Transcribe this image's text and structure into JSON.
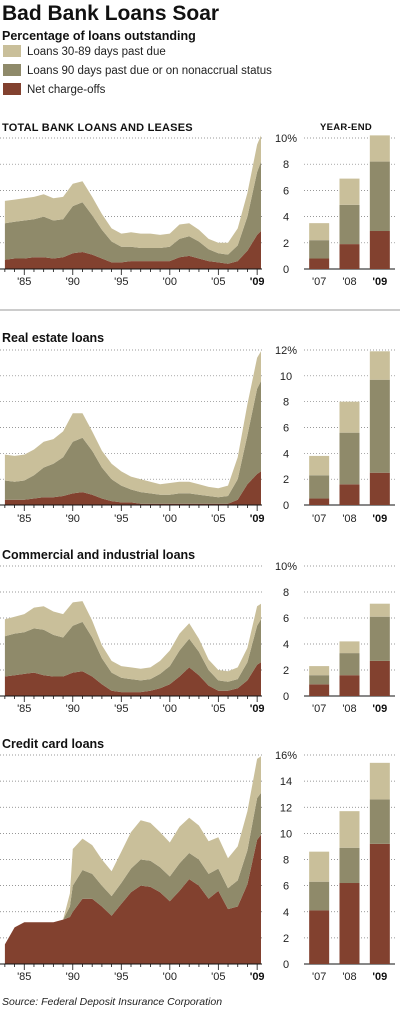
{
  "title": "Bad Bank Loans Soar",
  "subtitle": "Percentage of loans outstanding",
  "legend": [
    {
      "label": "Loans 30-89 days past due",
      "color": "#c9bf9a"
    },
    {
      "label": "Loans 90 days past due or on nonaccrual status",
      "color": "#8f8a6a"
    },
    {
      "label": "Net charge-offs",
      "color": "#82412f"
    }
  ],
  "year_end_label": "YEAR-END",
  "source": "Source: Federal Deposit Insurance Corporation",
  "colors": {
    "past_due_30_89": "#c9bf9a",
    "past_due_90": "#8f8a6a",
    "charge_offs": "#82412f"
  },
  "chart_data": [
    {
      "type": "area",
      "title": "TOTAL BANK LOANS AND LEASES",
      "stacked": true,
      "x_range": [
        1982.5,
        2009.5
      ],
      "ylim": [
        0,
        10
      ],
      "y_ticks": [
        "0",
        "2",
        "4",
        "6",
        "8",
        "10%"
      ],
      "x_tick_labels": [
        "'85",
        "'90",
        "'95",
        "'00",
        "'05",
        "'09"
      ],
      "x_tick_years": [
        1985,
        1990,
        1995,
        2000,
        2005,
        2009
      ],
      "years": [
        1983,
        1984,
        1985,
        1986,
        1987,
        1988,
        1989,
        1990,
        1991,
        1992,
        1993,
        1994,
        1995,
        1996,
        1997,
        1998,
        1999,
        2000,
        2001,
        2002,
        2003,
        2004,
        2005,
        2006,
        2007,
        2008,
        2009,
        2009.4
      ],
      "series": [
        {
          "name": "Net charge-offs",
          "values": [
            0.7,
            0.8,
            0.8,
            0.9,
            0.9,
            0.8,
            0.9,
            1.2,
            1.3,
            1.1,
            0.8,
            0.5,
            0.5,
            0.6,
            0.6,
            0.6,
            0.6,
            0.6,
            0.9,
            1.0,
            0.8,
            0.6,
            0.5,
            0.4,
            0.6,
            1.4,
            2.6,
            2.9
          ]
        },
        {
          "name": "Loans 90 days past due or on nonaccrual status",
          "values": [
            2.8,
            2.8,
            2.9,
            2.9,
            3.1,
            2.9,
            2.9,
            3.6,
            3.8,
            3.0,
            2.2,
            1.6,
            1.2,
            1.1,
            1.0,
            1.0,
            1.0,
            1.1,
            1.4,
            1.5,
            1.3,
            0.9,
            0.7,
            0.7,
            1.2,
            2.6,
            4.8,
            5.3
          ]
        },
        {
          "name": "Loans 30-89 days past due",
          "values": [
            1.7,
            1.7,
            1.7,
            1.7,
            1.7,
            1.7,
            1.7,
            1.7,
            1.6,
            1.4,
            1.2,
            1.0,
            1.0,
            1.1,
            1.1,
            1.1,
            1.0,
            1.0,
            1.1,
            1.0,
            0.9,
            0.8,
            0.8,
            0.9,
            1.3,
            1.8,
            2.1,
            2.0
          ]
        }
      ],
      "bars": {
        "categories": [
          "'07",
          "'08",
          "'09"
        ],
        "series": [
          {
            "name": "Net charge-offs",
            "values": [
              0.8,
              1.9,
              2.9
            ]
          },
          {
            "name": "Loans 90 days past due or on nonaccrual status",
            "values": [
              1.4,
              3.0,
              5.3
            ]
          },
          {
            "name": "Loans 30-89 days past due",
            "values": [
              1.3,
              2.0,
              2.0
            ]
          }
        ]
      }
    },
    {
      "type": "area",
      "title": "Real estate loans",
      "stacked": true,
      "x_range": [
        1982.5,
        2009.5
      ],
      "ylim": [
        0,
        12
      ],
      "y_ticks": [
        "0",
        "2",
        "4",
        "6",
        "8",
        "10",
        "12%"
      ],
      "x_tick_labels": [
        "'85",
        "'90",
        "'95",
        "'00",
        "'05",
        "'09"
      ],
      "x_tick_years": [
        1985,
        1990,
        1995,
        2000,
        2005,
        2009
      ],
      "years": [
        1983,
        1984,
        1985,
        1986,
        1987,
        1988,
        1989,
        1990,
        1991,
        1992,
        1993,
        1994,
        1995,
        1996,
        1997,
        1998,
        1999,
        2000,
        2001,
        2002,
        2003,
        2004,
        2005,
        2006,
        2007,
        2008,
        2009,
        2009.4
      ],
      "series": [
        {
          "name": "Net charge-offs",
          "values": [
            0.4,
            0.4,
            0.4,
            0.5,
            0.6,
            0.6,
            0.7,
            0.9,
            1.0,
            0.8,
            0.5,
            0.3,
            0.2,
            0.2,
            0.1,
            0.1,
            0.1,
            0.1,
            0.1,
            0.1,
            0.1,
            0.1,
            0.1,
            0.1,
            0.4,
            1.6,
            2.4,
            2.6
          ]
        },
        {
          "name": "Loans 90 days past due or on nonaccrual status",
          "values": [
            1.5,
            1.4,
            1.5,
            1.8,
            2.3,
            2.6,
            3.0,
            4.0,
            4.2,
            3.4,
            2.4,
            1.7,
            1.3,
            1.0,
            0.9,
            0.8,
            0.7,
            0.7,
            0.8,
            0.8,
            0.7,
            0.6,
            0.5,
            0.6,
            1.6,
            3.8,
            6.6,
            7.0
          ]
        },
        {
          "name": "Loans 30-89 days past due",
          "values": [
            2.0,
            2.0,
            2.0,
            2.0,
            2.0,
            1.9,
            2.0,
            2.2,
            1.9,
            1.5,
            1.3,
            1.2,
            1.1,
            1.0,
            1.0,
            0.9,
            0.8,
            0.9,
            0.9,
            0.9,
            0.8,
            0.7,
            0.7,
            0.8,
            1.7,
            2.4,
            2.4,
            2.3
          ]
        }
      ],
      "bars": {
        "categories": [
          "'07",
          "'08",
          "'09"
        ],
        "series": [
          {
            "name": "Net charge-offs",
            "values": [
              0.5,
              1.6,
              2.5
            ]
          },
          {
            "name": "Loans 90 days past due or on nonaccrual status",
            "values": [
              1.8,
              4.0,
              7.2
            ]
          },
          {
            "name": "Loans 30-89 days past due",
            "values": [
              1.5,
              2.4,
              2.2
            ]
          }
        ]
      }
    },
    {
      "type": "area",
      "title": "Commercial and industrial loans",
      "stacked": true,
      "x_range": [
        1982.5,
        2009.5
      ],
      "ylim": [
        0,
        10
      ],
      "y_ticks": [
        "0",
        "2",
        "4",
        "6",
        "8",
        "10%"
      ],
      "x_tick_labels": [
        "'85",
        "'90",
        "'95",
        "'00",
        "'05",
        "'09"
      ],
      "x_tick_years": [
        1985,
        1990,
        1995,
        2000,
        2005,
        2009
      ],
      "years": [
        1983,
        1984,
        1985,
        1986,
        1987,
        1988,
        1989,
        1990,
        1991,
        1992,
        1993,
        1994,
        1995,
        1996,
        1997,
        1998,
        1999,
        2000,
        2001,
        2002,
        2003,
        2004,
        2005,
        2006,
        2007,
        2008,
        2009,
        2009.4
      ],
      "series": [
        {
          "name": "Net charge-offs",
          "values": [
            1.5,
            1.6,
            1.7,
            1.8,
            1.6,
            1.5,
            1.5,
            1.8,
            1.9,
            1.5,
            0.9,
            0.4,
            0.3,
            0.3,
            0.3,
            0.4,
            0.6,
            0.9,
            1.5,
            2.2,
            1.6,
            0.8,
            0.4,
            0.4,
            0.6,
            1.2,
            2.4,
            2.6
          ]
        },
        {
          "name": "Loans 90 days past due or on nonaccrual status",
          "values": [
            3.1,
            3.2,
            3.2,
            3.4,
            3.5,
            3.2,
            3.0,
            3.6,
            3.8,
            3.0,
            2.0,
            1.4,
            1.1,
            1.0,
            0.9,
            0.9,
            1.1,
            1.4,
            2.0,
            2.2,
            1.8,
            1.2,
            0.8,
            0.7,
            0.7,
            1.4,
            3.0,
            3.3
          ]
        },
        {
          "name": "Loans 30-89 days past due",
          "values": [
            1.3,
            1.3,
            1.4,
            1.6,
            1.8,
            1.8,
            1.8,
            1.8,
            1.6,
            1.3,
            1.0,
            0.9,
            0.9,
            0.9,
            0.9,
            0.9,
            1.0,
            1.2,
            1.3,
            1.2,
            1.0,
            0.8,
            0.8,
            0.8,
            0.9,
            1.1,
            1.5,
            1.2
          ]
        }
      ],
      "bars": {
        "categories": [
          "'07",
          "'08",
          "'09"
        ],
        "series": [
          {
            "name": "Net charge-offs",
            "values": [
              0.9,
              1.6,
              2.7
            ]
          },
          {
            "name": "Loans 90 days past due or on nonaccrual status",
            "values": [
              0.7,
              1.7,
              3.4
            ]
          },
          {
            "name": "Loans 30-89 days past due",
            "values": [
              0.7,
              0.9,
              1.0
            ]
          }
        ]
      }
    },
    {
      "type": "area",
      "title": "Credit card loans",
      "stacked": true,
      "x_range": [
        1982.5,
        2009.5
      ],
      "ylim": [
        0,
        16
      ],
      "y_ticks": [
        "0",
        "2",
        "4",
        "6",
        "8",
        "10",
        "12",
        "14",
        "16%"
      ],
      "x_tick_labels": [
        "'85",
        "'90",
        "'95",
        "'00",
        "'05",
        "'09"
      ],
      "x_tick_years": [
        1985,
        1990,
        1995,
        2000,
        2005,
        2009
      ],
      "years": [
        1983,
        1984,
        1985,
        1986,
        1987,
        1988,
        1989,
        1989.7,
        1990,
        1991,
        1992,
        1993,
        1994,
        1995,
        1996,
        1997,
        1998,
        1999,
        2000,
        2001,
        2002,
        2003,
        2004,
        2005,
        2006,
        2007,
        2008,
        2009,
        2009.4
      ],
      "series": [
        {
          "name": "Net charge-offs",
          "values": [
            1.5,
            2.8,
            3.2,
            3.2,
            3.2,
            3.2,
            3.4,
            3.6,
            4.0,
            5.0,
            5.0,
            4.4,
            3.7,
            4.6,
            5.5,
            6.0,
            5.9,
            5.5,
            4.8,
            5.6,
            6.5,
            6.0,
            5.0,
            5.6,
            4.2,
            4.4,
            6.1,
            9.5,
            9.9
          ]
        },
        {
          "name": "Loans 90 days past due or on nonaccrual status",
          "values": [
            0.0,
            0.0,
            0.0,
            0.0,
            0.0,
            0.0,
            0.0,
            0.8,
            2.0,
            2.2,
            1.9,
            1.6,
            1.5,
            1.6,
            1.8,
            2.0,
            2.0,
            1.9,
            1.9,
            2.1,
            2.0,
            2.0,
            1.9,
            1.7,
            1.6,
            2.0,
            2.6,
            3.2,
            3.2
          ]
        },
        {
          "name": "Loans 30-89 days past due",
          "values": [
            0.0,
            0.0,
            0.0,
            0.0,
            0.0,
            0.0,
            0.0,
            1.0,
            2.8,
            2.4,
            2.2,
            2.0,
            1.9,
            2.4,
            2.8,
            3.0,
            2.9,
            2.7,
            2.6,
            2.8,
            2.7,
            2.6,
            2.5,
            2.4,
            2.3,
            2.6,
            3.0,
            3.0,
            2.8
          ]
        }
      ],
      "bars": {
        "categories": [
          "'07",
          "'08",
          "'09"
        ],
        "series": [
          {
            "name": "Net charge-offs",
            "values": [
              4.1,
              6.2,
              9.2
            ]
          },
          {
            "name": "Loans 90 days past due or on nonaccrual status",
            "values": [
              2.2,
              2.7,
              3.4
            ]
          },
          {
            "name": "Loans 30-89 days past due",
            "values": [
              2.3,
              2.8,
              2.8
            ]
          }
        ]
      }
    }
  ]
}
